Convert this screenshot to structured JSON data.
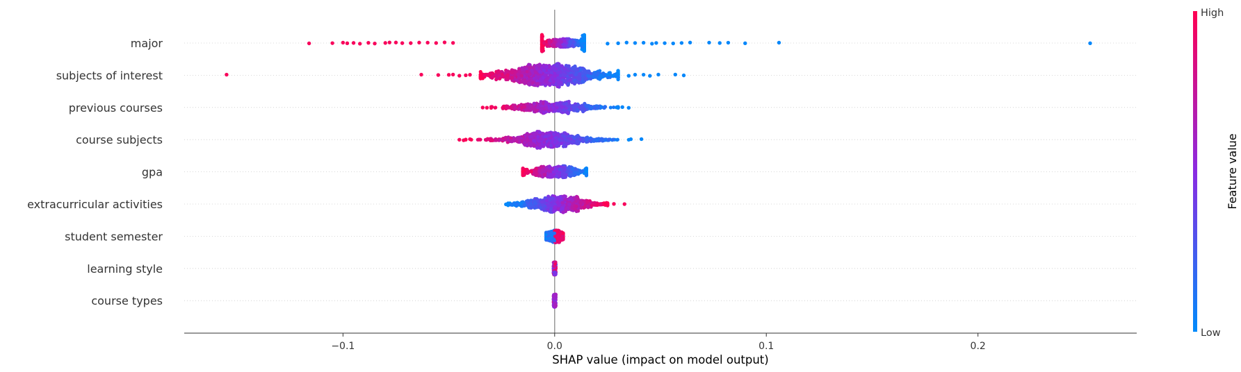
{
  "chart_data": {
    "type": "scatter",
    "xlabel": "SHAP value (impact on model output)",
    "ylabel": "",
    "xlim": [
      -0.175,
      0.275
    ],
    "x_ticks": [
      {
        "value": -0.1,
        "label": "−0.1"
      },
      {
        "value": 0.0,
        "label": "0.0"
      },
      {
        "value": 0.1,
        "label": "0.1"
      },
      {
        "value": 0.2,
        "label": "0.2"
      }
    ],
    "colorbar": {
      "title": "Feature value",
      "high_label": "High",
      "low_label": "Low",
      "high_color": "#ff0052",
      "low_color": "#008bfb"
    },
    "grid": "dotted horizontal",
    "series": [
      {
        "name": "major",
        "n": 650,
        "core": [
          -0.006,
          0.014
        ],
        "spread": 0.009,
        "left_tail": [
          -0.116,
          -0.105,
          -0.1,
          -0.098,
          -0.095,
          -0.092,
          -0.088,
          -0.085,
          -0.08,
          -0.078,
          -0.075,
          -0.072,
          -0.068,
          -0.064,
          -0.06,
          -0.056,
          -0.052,
          -0.048
        ],
        "right_tail": [
          0.025,
          0.03,
          0.034,
          0.038,
          0.042,
          0.046,
          0.048,
          0.052,
          0.056,
          0.06,
          0.064,
          0.073,
          0.078,
          0.082,
          0.09,
          0.106,
          0.253
        ],
        "color_mode": "neg_high"
      },
      {
        "name": "subjects of interest",
        "n": 1100,
        "core": [
          -0.035,
          0.03
        ],
        "spread": 0.015,
        "left_tail": [
          -0.155,
          -0.063,
          -0.055,
          -0.05,
          -0.048,
          -0.045,
          -0.042,
          -0.04
        ],
        "right_tail": [
          0.035,
          0.038,
          0.042,
          0.045,
          0.049,
          0.057,
          0.061
        ],
        "color_mode": "neg_high"
      },
      {
        "name": "previous courses",
        "n": 600,
        "core": [
          -0.03,
          0.03
        ],
        "spread": 0.012,
        "left_tail": [
          -0.034,
          -0.032
        ],
        "right_tail": [
          0.032,
          0.035
        ],
        "color_mode": "neg_high"
      },
      {
        "name": "course subjects",
        "n": 700,
        "core": [
          -0.042,
          0.035
        ],
        "spread": 0.013,
        "left_tail": [
          -0.045,
          -0.043,
          -0.04
        ],
        "right_tail": [
          0.036,
          0.041
        ],
        "color_mode": "neg_high"
      },
      {
        "name": "gpa",
        "n": 500,
        "core": [
          -0.015,
          0.015
        ],
        "spread": 0.008,
        "left_tail": [],
        "right_tail": [],
        "color_mode": "neg_high"
      },
      {
        "name": "extracurricular activities",
        "n": 750,
        "core": [
          -0.022,
          0.025
        ],
        "spread": 0.01,
        "left_tail": [
          -0.023
        ],
        "right_tail": [
          0.028,
          0.033
        ],
        "color_mode": "pos_high"
      },
      {
        "name": "student semester",
        "n": 600,
        "core": [
          -0.004,
          0.004
        ],
        "spread": 0.003,
        "left_tail": [],
        "right_tail": [],
        "color_mode": "split"
      },
      {
        "name": "learning style",
        "n": 200,
        "core": [
          -0.0005,
          0.0005
        ],
        "spread": 0.0003,
        "left_tail": [],
        "right_tail": [],
        "color_mode": "mixed"
      },
      {
        "name": "course types",
        "n": 200,
        "core": [
          -0.0005,
          0.0005
        ],
        "spread": 0.0003,
        "left_tail": [],
        "right_tail": [],
        "color_mode": "mixed_purple"
      }
    ]
  }
}
